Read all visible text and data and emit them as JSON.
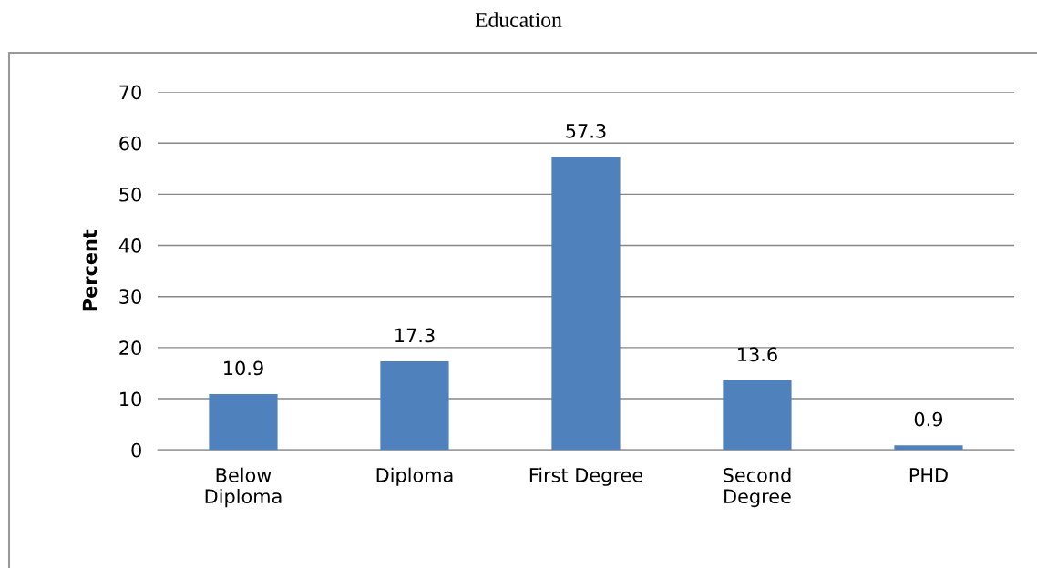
{
  "chart_data": {
    "type": "bar",
    "title": "Education",
    "ylabel": "Percent",
    "categories": [
      "Below\nDiploma",
      "Diploma",
      "First Degree",
      "Second\nDegree",
      "PHD"
    ],
    "values": [
      10.9,
      17.3,
      57.3,
      13.6,
      0.9
    ],
    "color": "#4f81bd",
    "ylim": [
      0,
      70
    ],
    "yticks": [
      0,
      10,
      20,
      30,
      40,
      50,
      60,
      70
    ],
    "grid": "y",
    "data_labels": true
  }
}
